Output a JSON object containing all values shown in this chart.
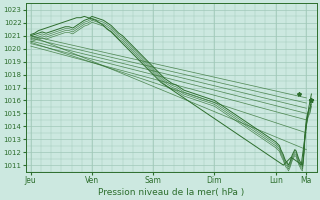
{
  "bg_color": "#cce8e0",
  "grid_color": "#a0c8b8",
  "line_color": "#2d6e2d",
  "xlabel": "Pression niveau de la mer( hPa )",
  "ylim": [
    1010.5,
    1023.5
  ],
  "yticks": [
    1011,
    1012,
    1013,
    1014,
    1015,
    1016,
    1017,
    1018,
    1019,
    1020,
    1021,
    1022,
    1023
  ],
  "xtick_labels": [
    "Jeu",
    "Ven",
    "Sam",
    "Dim",
    "Lun",
    "Ma"
  ],
  "xtick_positions": [
    0,
    48,
    96,
    144,
    192,
    216
  ],
  "xlim": [
    -4,
    224
  ],
  "straight_lines": [
    [
      1021.0,
      1016.2
    ],
    [
      1020.8,
      1015.8
    ],
    [
      1020.6,
      1015.4
    ],
    [
      1020.4,
      1015.0
    ],
    [
      1020.2,
      1014.5
    ],
    [
      1020.5,
      1013.5
    ],
    [
      1021.0,
      1012.2
    ]
  ],
  "main_line_x": [
    0,
    3,
    6,
    9,
    12,
    15,
    18,
    21,
    24,
    27,
    30,
    33,
    36,
    39,
    42,
    45,
    48,
    51,
    54,
    57,
    60,
    63,
    66,
    69,
    72,
    75,
    78,
    81,
    84,
    87,
    90,
    93,
    96,
    99,
    102,
    105,
    108,
    111,
    114,
    117,
    120,
    123,
    126,
    129,
    132,
    135,
    138,
    141,
    144,
    147,
    150,
    153,
    156,
    159,
    162,
    165,
    168,
    171,
    174,
    177,
    180,
    183,
    186,
    189,
    192,
    195,
    196,
    197,
    198,
    199,
    200,
    201,
    202,
    203,
    204,
    205,
    206,
    207,
    208,
    209,
    210,
    211,
    212,
    213,
    214,
    215,
    216,
    217,
    218,
    219,
    220
  ],
  "main_line_y": [
    1021.0,
    1021.1,
    1021.2,
    1021.3,
    1021.2,
    1021.3,
    1021.4,
    1021.5,
    1021.6,
    1021.7,
    1021.7,
    1021.6,
    1021.8,
    1022.0,
    1022.2,
    1022.3,
    1022.5,
    1022.4,
    1022.3,
    1022.2,
    1022.0,
    1021.8,
    1021.5,
    1021.2,
    1021.0,
    1020.7,
    1020.4,
    1020.1,
    1019.8,
    1019.5,
    1019.2,
    1018.9,
    1018.6,
    1018.3,
    1018.0,
    1017.7,
    1017.5,
    1017.3,
    1017.2,
    1017.0,
    1016.8,
    1016.7,
    1016.6,
    1016.5,
    1016.4,
    1016.3,
    1016.2,
    1016.1,
    1016.0,
    1015.8,
    1015.6,
    1015.4,
    1015.2,
    1015.0,
    1014.8,
    1014.6,
    1014.4,
    1014.2,
    1014.0,
    1013.8,
    1013.6,
    1013.4,
    1013.2,
    1013.0,
    1012.8,
    1012.5,
    1012.2,
    1012.0,
    1011.8,
    1011.5,
    1011.3,
    1011.2,
    1011.0,
    1011.2,
    1011.5,
    1011.8,
    1012.0,
    1012.2,
    1012.1,
    1011.8,
    1011.5,
    1011.3,
    1011.1,
    1011.0,
    1012.0,
    1013.5,
    1014.5,
    1015.0,
    1015.3,
    1015.5,
    1016.0
  ],
  "second_line_x": [
    0,
    3,
    6,
    9,
    12,
    15,
    18,
    21,
    24,
    27,
    30,
    33,
    36,
    39,
    42,
    45,
    48,
    51,
    54,
    57,
    60,
    63,
    66,
    69,
    72,
    75,
    78,
    81,
    84,
    87,
    90,
    93,
    96,
    99,
    102,
    105,
    108,
    111,
    114,
    117,
    120,
    123,
    126,
    129,
    132,
    135,
    138,
    141,
    144,
    147,
    150,
    153,
    156,
    159,
    162,
    165,
    168,
    171,
    174,
    177,
    180,
    183,
    186,
    189,
    192,
    195,
    198,
    201,
    204,
    207,
    210,
    212,
    214,
    216,
    218,
    220
  ],
  "second_line_y": [
    1021.1,
    1021.2,
    1021.4,
    1021.5,
    1021.6,
    1021.7,
    1021.8,
    1021.9,
    1022.0,
    1022.1,
    1022.2,
    1022.3,
    1022.4,
    1022.4,
    1022.5,
    1022.4,
    1022.3,
    1022.2,
    1022.0,
    1021.8,
    1021.5,
    1021.3,
    1021.0,
    1020.7,
    1020.4,
    1020.1,
    1019.8,
    1019.5,
    1019.2,
    1018.9,
    1018.6,
    1018.3,
    1018.0,
    1017.7,
    1017.4,
    1017.2,
    1017.0,
    1016.8,
    1016.6,
    1016.4,
    1016.2,
    1016.0,
    1015.8,
    1015.6,
    1015.4,
    1015.2,
    1015.0,
    1014.8,
    1014.6,
    1014.4,
    1014.2,
    1014.0,
    1013.8,
    1013.6,
    1013.4,
    1013.2,
    1013.0,
    1012.8,
    1012.6,
    1012.4,
    1012.2,
    1012.0,
    1011.8,
    1011.6,
    1011.4,
    1011.2,
    1011.0,
    1011.3,
    1011.6,
    1011.4,
    1011.2,
    1011.0,
    1012.5,
    1014.0,
    1015.5,
    1016.5
  ],
  "star1_x": 220,
  "star1_y": 1016.0,
  "star2_x": 210,
  "star2_y": 1016.5,
  "lw_main": 0.7,
  "lw_straight": 0.55,
  "ytick_fontsize": 5.0,
  "xtick_fontsize": 5.5,
  "xlabel_fontsize": 6.5
}
